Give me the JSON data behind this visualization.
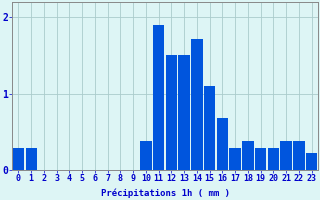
{
  "values": [
    0.28,
    0.28,
    0.0,
    0.0,
    0.0,
    0.0,
    0.0,
    0.0,
    0.0,
    0.0,
    0.38,
    1.9,
    1.5,
    1.5,
    1.72,
    1.1,
    0.68,
    0.28,
    0.38,
    0.28,
    0.28,
    0.38,
    0.38,
    0.22
  ],
  "bar_color": "#0055dd",
  "bg_color": "#ddf5f5",
  "grid_color": "#aacccc",
  "axis_color": "#0000cc",
  "xlabel": "Précipitations 1h ( mm )",
  "xlim": [
    -0.5,
    23.5
  ],
  "ylim": [
    0,
    2.2
  ],
  "yticks": [
    0,
    1,
    2
  ],
  "xlabel_fontsize": 6.5,
  "tick_fontsize": 6
}
